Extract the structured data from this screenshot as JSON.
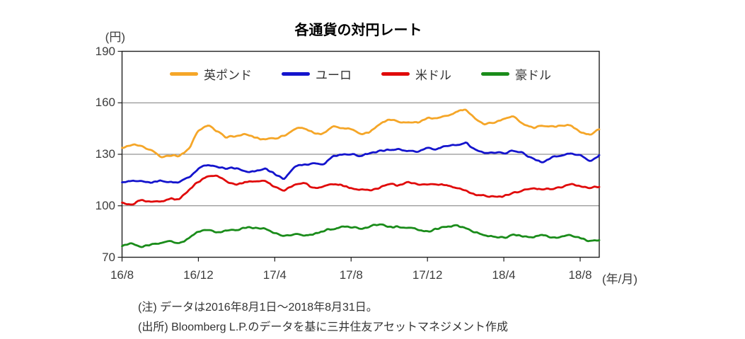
{
  "title": "各通貨の対円レート",
  "y_axis": {
    "unit_label": "(円)",
    "ticks": [
      190,
      160,
      130,
      100,
      70
    ]
  },
  "x_axis": {
    "unit_label": "(年/月)"
  },
  "notes": [
    "(注) データは2016年8月1日～2018年8月31日。",
    "(出所) Bloomberg L.P.のデータを基に三井住友アセットマネジメント作成"
  ],
  "chart_data": {
    "type": "line",
    "title": "各通貨の対円レート",
    "ylabel": "(円)",
    "xlabel": "(年/月)",
    "ylim": [
      70,
      190
    ],
    "y_ticks": [
      190,
      160,
      130,
      100,
      70
    ],
    "gridlines_y": [
      160,
      130,
      100
    ],
    "grid": true,
    "legend_position": "top-center",
    "x_range": "2016/8/1 - 2018/8/31",
    "sampling": "semi-monthly",
    "x_tick_labels": [
      "16/8",
      "16/12",
      "17/4",
      "17/8",
      "17/12",
      "18/4",
      "18/8"
    ],
    "x_tick_indices": [
      0,
      8,
      16,
      24,
      32,
      40,
      48
    ],
    "series": [
      {
        "name": "英ポンド",
        "color": "#F5A628",
        "values": [
          133.5,
          135.5,
          134.5,
          132.5,
          128.5,
          129.5,
          129.0,
          133.0,
          144.0,
          147.0,
          143.5,
          139.5,
          141.0,
          141.5,
          139.5,
          138.5,
          139.0,
          141.0,
          144.5,
          145.5,
          142.5,
          142.0,
          146.0,
          145.0,
          144.5,
          142.0,
          143.0,
          147.5,
          150.5,
          148.5,
          149.0,
          148.0,
          151.5,
          151.0,
          152.5,
          155.0,
          156.0,
          151.0,
          147.5,
          148.5,
          150.5,
          152.0,
          148.0,
          145.5,
          146.5,
          146.0,
          146.5,
          147.0,
          143.0,
          141.0,
          144.5
        ]
      },
      {
        "name": "ユーロ",
        "color": "#1414CD",
        "values": [
          113.5,
          114.5,
          114.5,
          113.0,
          115.0,
          114.0,
          113.5,
          116.5,
          121.5,
          124.0,
          122.5,
          121.5,
          122.0,
          119.5,
          120.5,
          122.0,
          118.5,
          115.5,
          122.5,
          124.0,
          124.5,
          124.0,
          128.5,
          129.5,
          130.0,
          129.0,
          131.0,
          132.0,
          132.5,
          133.0,
          132.0,
          131.5,
          134.0,
          133.0,
          135.0,
          135.5,
          137.0,
          132.5,
          130.5,
          131.0,
          130.5,
          132.0,
          131.0,
          127.5,
          125.5,
          128.5,
          129.0,
          130.5,
          129.5,
          126.0,
          129.5
        ]
      },
      {
        "name": "米ドル",
        "color": "#E00A0A",
        "values": [
          102.0,
          100.5,
          103.5,
          102.0,
          102.5,
          104.0,
          103.5,
          109.0,
          114.0,
          117.0,
          117.5,
          114.0,
          112.5,
          114.0,
          114.0,
          115.0,
          111.0,
          108.8,
          112.0,
          113.5,
          110.5,
          111.0,
          113.0,
          112.0,
          110.5,
          109.5,
          109.0,
          110.5,
          112.5,
          112.0,
          114.0,
          112.5,
          112.0,
          112.5,
          112.5,
          110.5,
          109.0,
          106.5,
          106.0,
          105.0,
          105.5,
          107.5,
          109.0,
          110.0,
          109.5,
          110.0,
          110.5,
          112.5,
          111.5,
          110.5,
          111.0
        ]
      },
      {
        "name": "豪ドル",
        "color": "#1A8C1A",
        "values": [
          76.5,
          78.0,
          76.0,
          77.5,
          78.5,
          79.5,
          78.0,
          81.0,
          85.0,
          86.0,
          84.5,
          85.5,
          86.0,
          87.0,
          87.5,
          86.5,
          84.0,
          82.5,
          83.5,
          82.5,
          83.0,
          85.0,
          86.5,
          88.0,
          87.5,
          86.5,
          88.0,
          89.5,
          88.0,
          87.5,
          87.5,
          86.0,
          85.0,
          86.5,
          87.5,
          88.5,
          87.0,
          84.5,
          83.0,
          82.0,
          81.5,
          83.5,
          82.0,
          81.5,
          83.0,
          81.5,
          82.0,
          83.0,
          81.0,
          79.5,
          80.0
        ]
      }
    ]
  }
}
